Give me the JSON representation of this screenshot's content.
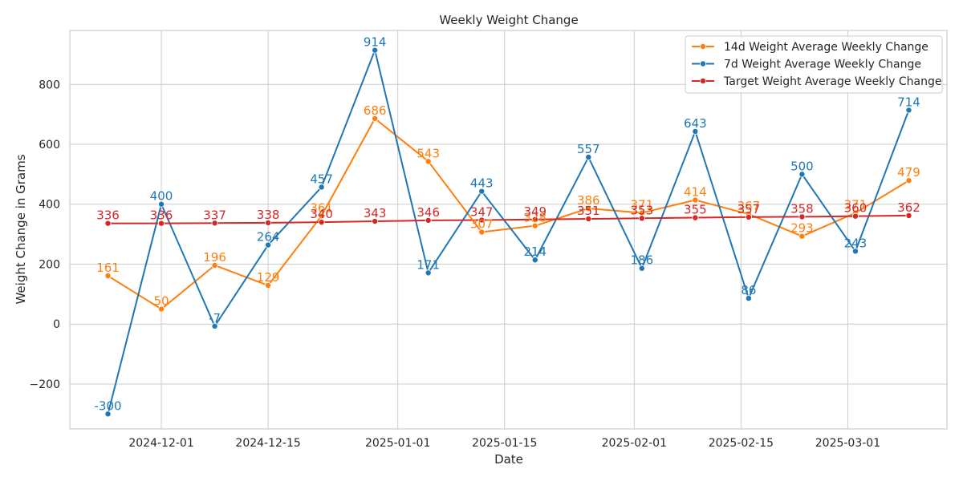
{
  "chart_data": {
    "type": "line",
    "title": "Weekly Weight Change",
    "xlabel": "Date",
    "ylabel": "Weight Change in Grams",
    "x": [
      "2024-11-24",
      "2024-12-01",
      "2024-12-08",
      "2024-12-15",
      "2024-12-22",
      "2024-12-29",
      "2025-01-05",
      "2025-01-12",
      "2025-01-19",
      "2025-01-26",
      "2025-02-02",
      "2025-02-09",
      "2025-02-16",
      "2025-02-23",
      "2025-03-02",
      "2025-03-09"
    ],
    "xticks": [
      "2024-12-01",
      "2024-12-15",
      "2025-01-01",
      "2025-01-15",
      "2025-02-01",
      "2025-02-15",
      "2025-03-01"
    ],
    "xlim": [
      "2024-11-19",
      "2025-03-14"
    ],
    "ylim": [
      -350,
      980
    ],
    "yticks": [
      -200,
      0,
      200,
      400,
      600,
      800
    ],
    "grid": true,
    "legend_position": "top-right",
    "series": [
      {
        "name": "14d Weight Average Weekly Change",
        "color": "#ff7f0e",
        "values": [
          161,
          50,
          196,
          129,
          361,
          686,
          543,
          307,
          328,
          386,
          371,
          414,
          367,
          293,
          371,
          479
        ]
      },
      {
        "name": "7d Weight Average Weekly Change",
        "color": "#1f77b4",
        "values": [
          -300,
          400,
          -7,
          264,
          457,
          914,
          171,
          443,
          214,
          557,
          186,
          643,
          86,
          500,
          243,
          714
        ]
      },
      {
        "name": "Target Weight Average Weekly Change",
        "color": "#d62728",
        "values": [
          336,
          336,
          337,
          338,
          340,
          343,
          346,
          347,
          349,
          351,
          353,
          355,
          357,
          358,
          360,
          362
        ]
      }
    ]
  }
}
